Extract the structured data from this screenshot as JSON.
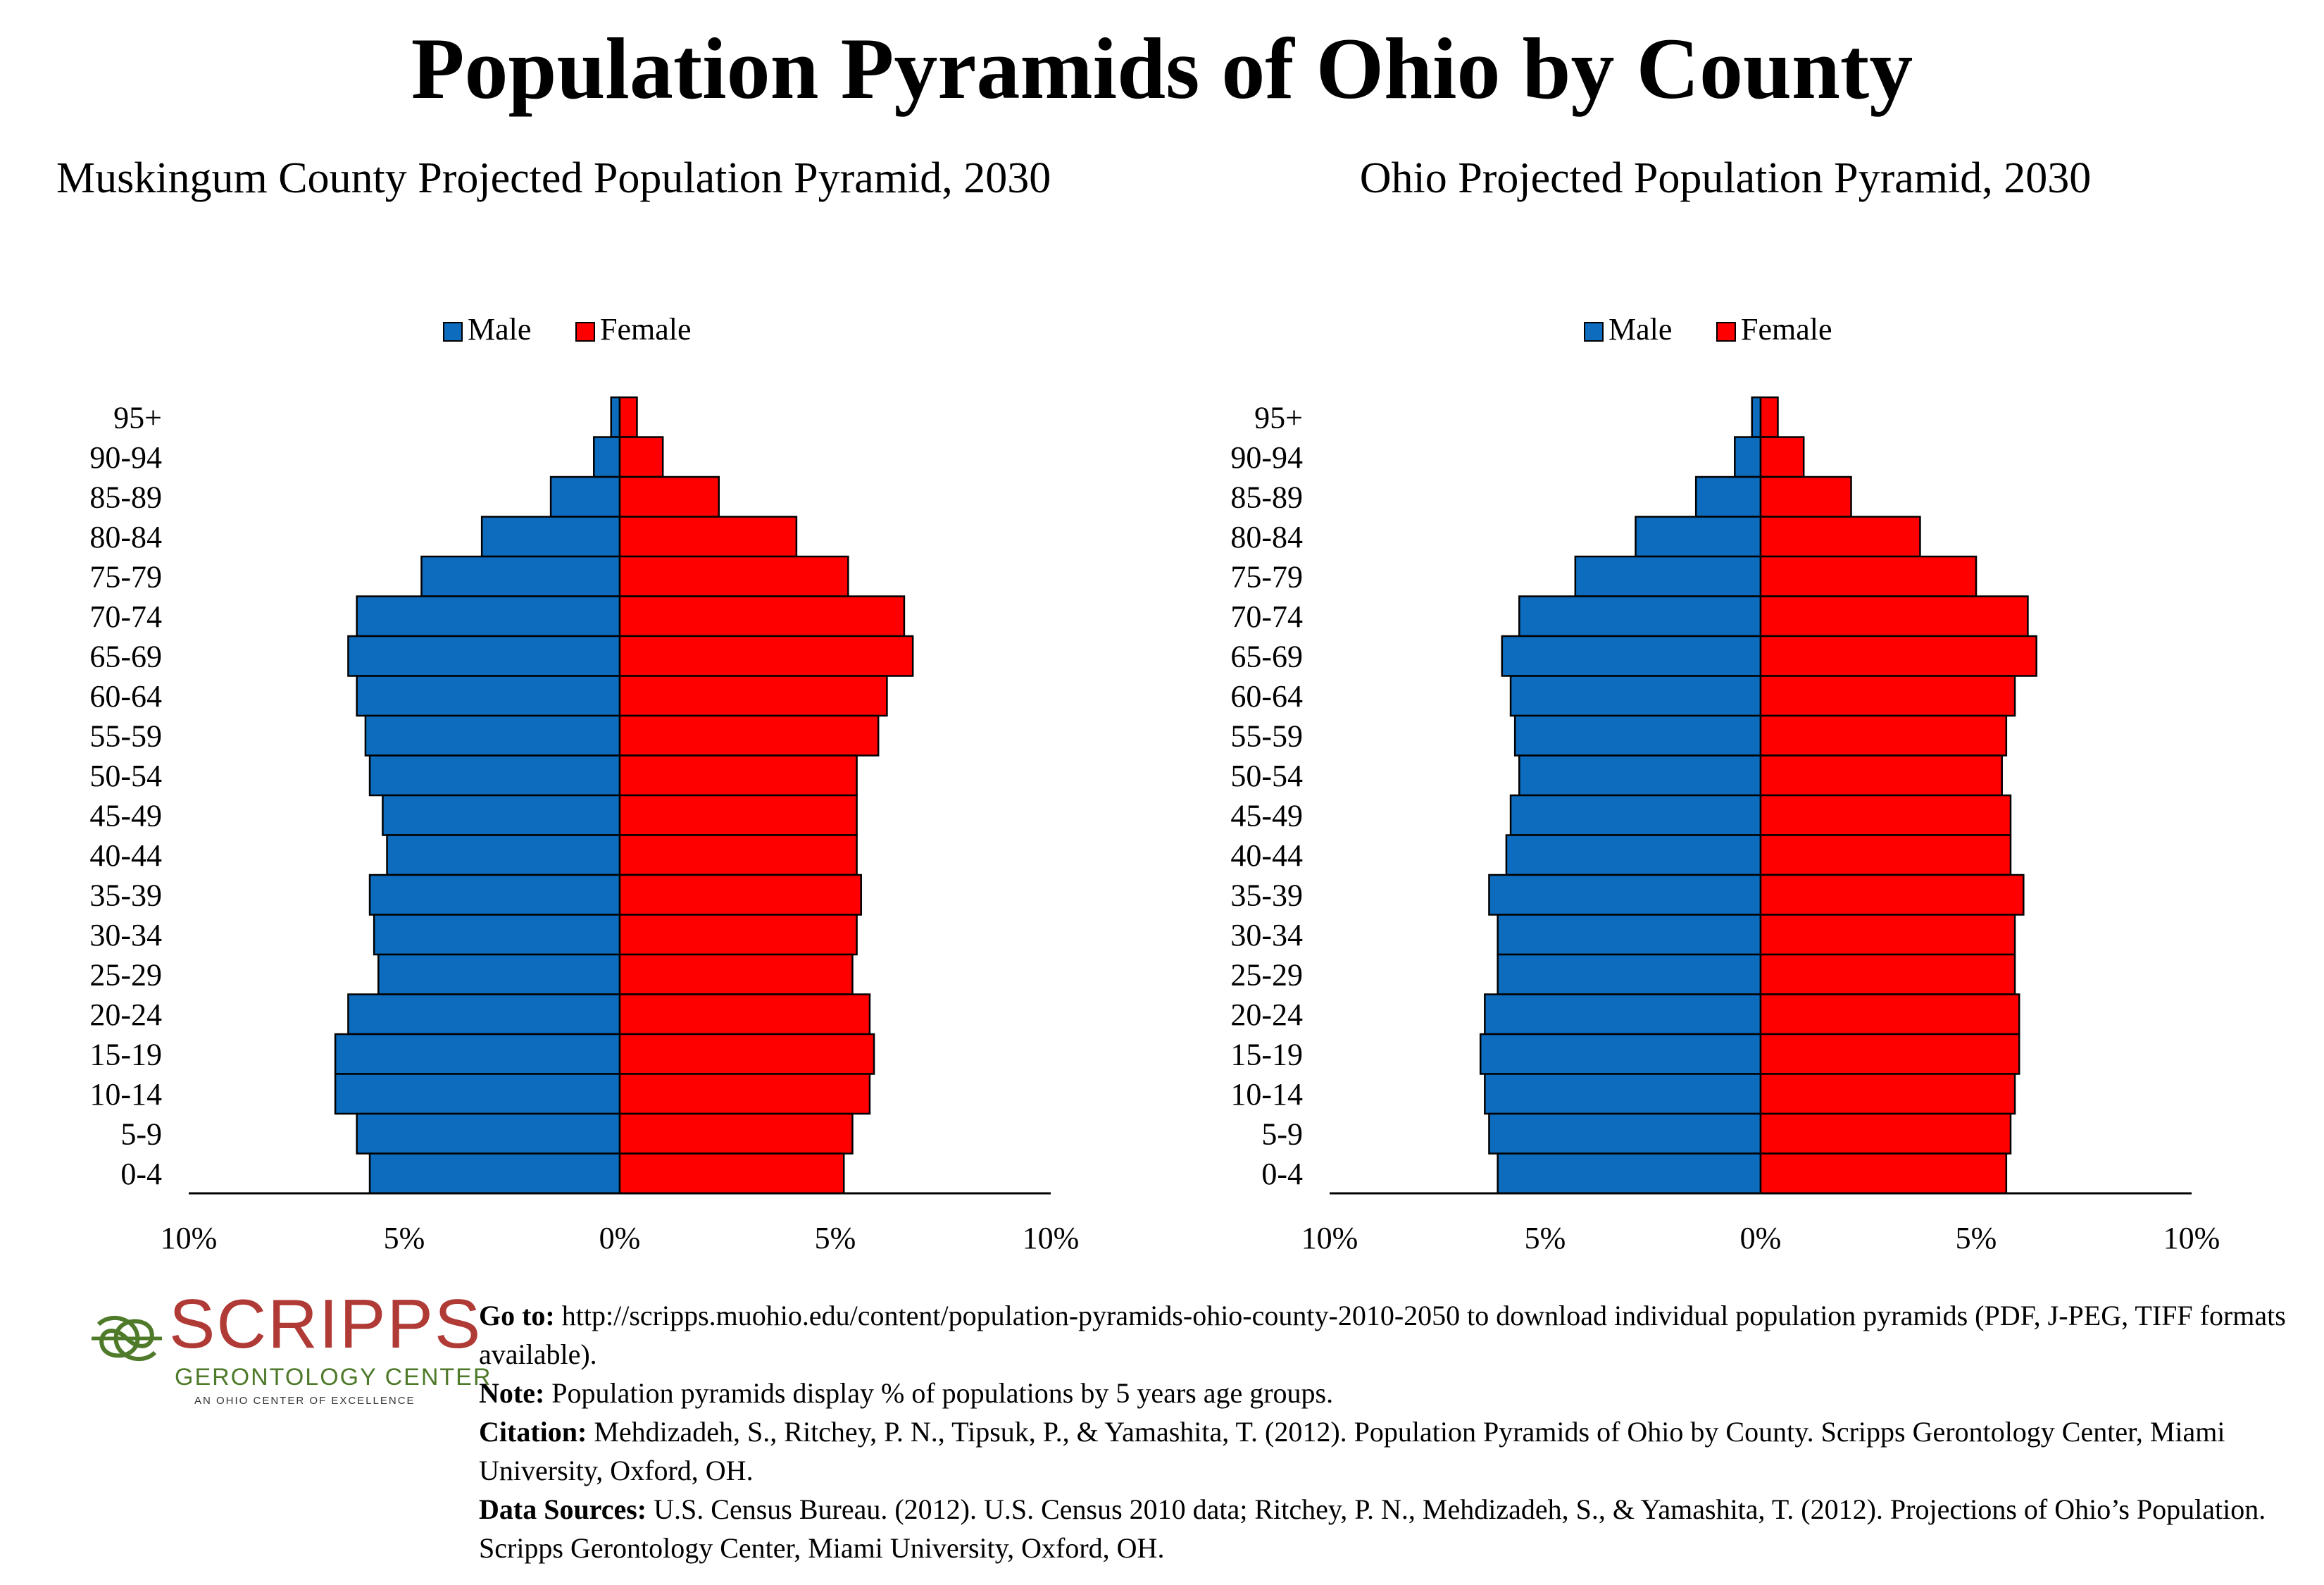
{
  "title": "Population Pyramids of Ohio by County",
  "colors": {
    "male": "#0d6cbd",
    "female": "#ff0000",
    "outline": "#000000"
  },
  "chart_data": [
    {
      "type": "bar",
      "title": "Muskingum County Projected Population Pyramid, 2030",
      "legend": {
        "placement": "top-center",
        "entries": [
          "Male",
          "Female"
        ]
      },
      "categories": [
        "95+",
        "90-94",
        "85-89",
        "80-84",
        "75-79",
        "70-74",
        "65-69",
        "60-64",
        "55-59",
        "50-54",
        "45-49",
        "40-44",
        "35-39",
        "30-34",
        "25-29",
        "20-24",
        "15-19",
        "10-14",
        "5-9",
        "0-4"
      ],
      "series": [
        {
          "name": "Male",
          "values": [
            0.2,
            0.6,
            1.6,
            3.2,
            4.6,
            6.1,
            6.3,
            6.1,
            5.9,
            5.8,
            5.5,
            5.4,
            5.8,
            5.7,
            5.6,
            6.3,
            6.6,
            6.6,
            6.1,
            5.8
          ]
        },
        {
          "name": "Female",
          "values": [
            0.4,
            1.0,
            2.3,
            4.1,
            5.3,
            6.6,
            6.8,
            6.2,
            6.0,
            5.5,
            5.5,
            5.5,
            5.6,
            5.5,
            5.4,
            5.8,
            5.9,
            5.8,
            5.4,
            5.2
          ]
        }
      ],
      "xlim": [
        -10,
        10
      ],
      "tick_labels": [
        "10%",
        "5%",
        "0%",
        "5%",
        "10%"
      ],
      "grid": false
    },
    {
      "type": "bar",
      "title": "Ohio Projected Population Pyramid, 2030",
      "legend": {
        "placement": "top-center",
        "entries": [
          "Male",
          "Female"
        ]
      },
      "categories": [
        "95+",
        "90-94",
        "85-89",
        "80-84",
        "75-79",
        "70-74",
        "65-69",
        "60-64",
        "55-59",
        "50-54",
        "45-49",
        "40-44",
        "35-39",
        "30-34",
        "25-29",
        "20-24",
        "15-19",
        "10-14",
        "5-9",
        "0-4"
      ],
      "series": [
        {
          "name": "Male",
          "values": [
            0.2,
            0.6,
            1.5,
            2.9,
            4.3,
            5.6,
            6.0,
            5.8,
            5.7,
            5.6,
            5.8,
            5.9,
            6.3,
            6.1,
            6.1,
            6.4,
            6.5,
            6.4,
            6.3,
            6.1
          ]
        },
        {
          "name": "Female",
          "values": [
            0.4,
            1.0,
            2.1,
            3.7,
            5.0,
            6.2,
            6.4,
            5.9,
            5.7,
            5.6,
            5.8,
            5.8,
            6.1,
            5.9,
            5.9,
            6.0,
            6.0,
            5.9,
            5.8,
            5.7
          ]
        }
      ],
      "xlim": [
        -10,
        10
      ],
      "tick_labels": [
        "10%",
        "5%",
        "0%",
        "5%",
        "10%"
      ],
      "grid": false
    }
  ],
  "logo": {
    "name": "SCRIPPS",
    "subtitle": "GERONTOLOGY CENTER",
    "tagline": "AN OHIO CENTER OF EXCELLENCE"
  },
  "notes": {
    "goto_label": "Go to:",
    "goto_text": " http://scripps.muohio.edu/content/population-pyramids-ohio-county-2010-2050 to download individual population pyramids (PDF, J-PEG, TIFF formats available).",
    "note_label": "Note:",
    "note_text": " Population pyramids display % of populations by 5 years age groups.",
    "citation_label": "Citation:",
    "citation_text": " Mehdizadeh, S., Ritchey, P. N., Tipsuk, P., & Yamashita, T. (2012). Population Pyramids of Ohio by County. Scripps Gerontology Center, Miami University, Oxford, OH.",
    "sources_label": "Data Sources:",
    "sources_text": " U.S. Census Bureau. (2012). U.S. Census 2010 data; Ritchey, P. N., Mehdizadeh, S., & Yamashita, T. (2012). Projections of Ohio’s Population. Scripps Gerontology Center, Miami University, Oxford, OH."
  }
}
